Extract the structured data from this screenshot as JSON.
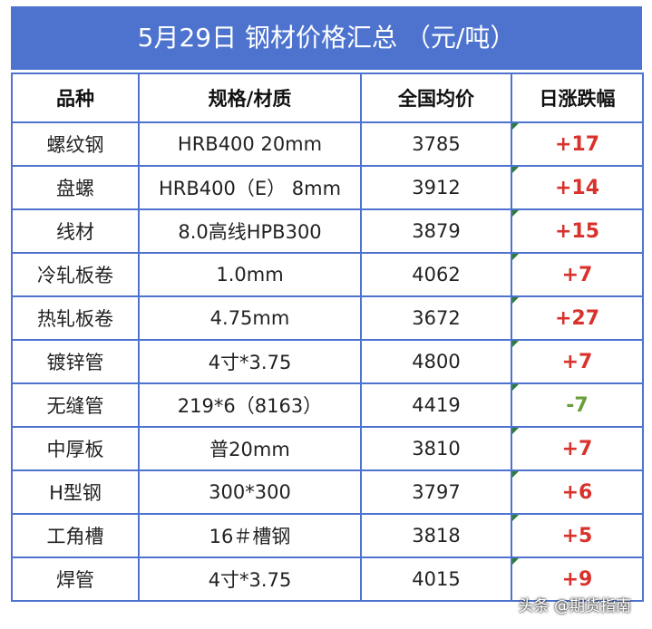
{
  "title": "5月29日  钢材价格汇总   （元/吨）",
  "headers": {
    "product": "品种",
    "spec": "规格/材质",
    "avg_price": "全国均价",
    "daily_change": "日涨跌幅"
  },
  "rows": [
    {
      "product": "螺纹钢",
      "spec": "HRB400 20mm",
      "avg_price": "3785",
      "daily_change": "+17",
      "direction": "up"
    },
    {
      "product": "盘螺",
      "spec": "HRB400（E） 8mm",
      "avg_price": "3912",
      "daily_change": "+14",
      "direction": "up"
    },
    {
      "product": "线材",
      "spec": "8.0高线HPB300",
      "avg_price": "3879",
      "daily_change": "+15",
      "direction": "up"
    },
    {
      "product": "冷轧板卷",
      "spec": "1.0mm",
      "avg_price": "4062",
      "daily_change": "+7",
      "direction": "up"
    },
    {
      "product": "热轧板卷",
      "spec": "4.75mm",
      "avg_price": "3672",
      "daily_change": "+27",
      "direction": "up"
    },
    {
      "product": "镀锌管",
      "spec": "4寸*3.75",
      "avg_price": "4800",
      "daily_change": "+7",
      "direction": "up"
    },
    {
      "product": "无缝管",
      "spec": "219*6（8163）",
      "avg_price": "4419",
      "daily_change": "-7",
      "direction": "down"
    },
    {
      "product": "中厚板",
      "spec": "普20mm",
      "avg_price": "3810",
      "daily_change": "+7",
      "direction": "up"
    },
    {
      "product": "H型钢",
      "spec": "300*300",
      "avg_price": "3797",
      "daily_change": "+6",
      "direction": "up"
    },
    {
      "product": "工角槽",
      "spec": "16＃槽钢",
      "avg_price": "3818",
      "daily_change": "+5",
      "direction": "up"
    },
    {
      "product": "焊管",
      "spec": "4寸*3.75",
      "avg_price": "4015",
      "daily_change": "+9",
      "direction": "up"
    }
  ],
  "watermark": "头条 @期货指南",
  "colors": {
    "header_bg": "#4d73cf",
    "border": "#4d73cf",
    "up": "#d9322d",
    "down": "#6a9e3a"
  }
}
